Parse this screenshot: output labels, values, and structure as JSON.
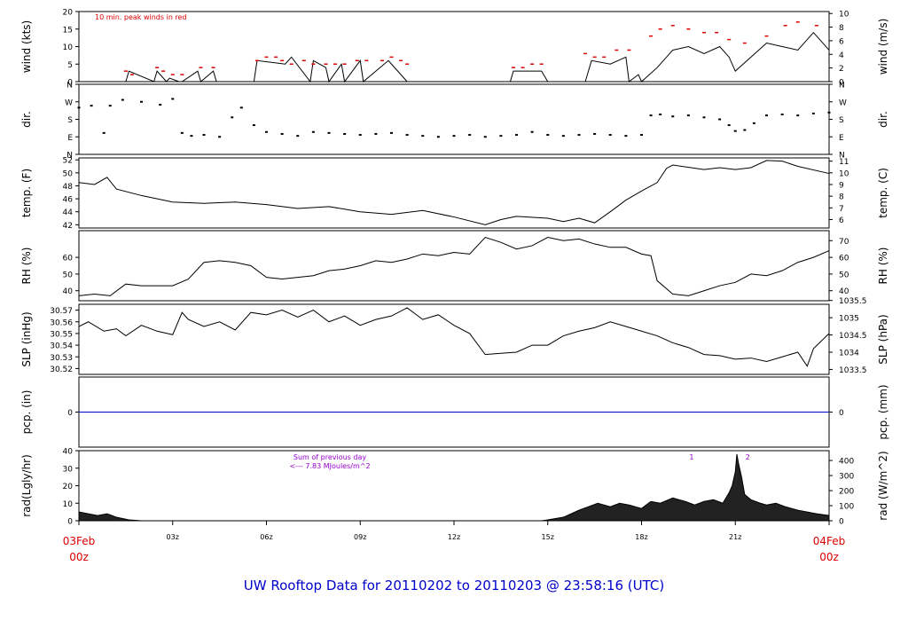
{
  "footer": {
    "title": "UW Rooftop Data for 20110202  to  20110203 @ 23:58:16  (UTC)"
  },
  "colors": {
    "axis": "#000000",
    "data": "#000000",
    "peak": "#dd0000",
    "precip_line": "#0000cc",
    "annotation": "#9900cc",
    "x_label": "#dd0000",
    "footer": "#0000cc"
  },
  "x_axis": {
    "start": "03Feb 00z",
    "end": "04Feb 00z",
    "ticks": [
      {
        "hour": 0,
        "label": ""
      },
      {
        "hour": 3,
        "label": "03z"
      },
      {
        "hour": 6,
        "label": "06z"
      },
      {
        "hour": 9,
        "label": "09z"
      },
      {
        "hour": 12,
        "label": "12z"
      },
      {
        "hour": 15,
        "label": "15z"
      },
      {
        "hour": 18,
        "label": "18z"
      },
      {
        "hour": 21,
        "label": "21z"
      },
      {
        "hour": 24,
        "label": ""
      }
    ],
    "start_label": [
      "03Feb",
      "00z"
    ],
    "end_label": [
      "04Feb",
      "00z"
    ]
  },
  "chart_data": [
    {
      "id": "wind",
      "type": "line",
      "ylabel_left": "wind (kts)",
      "ylabel_right": "wind (m/s)",
      "ylim": [
        0,
        20
      ],
      "left_ticks": [
        0,
        5,
        10,
        15,
        20
      ],
      "right_ticks": [
        0,
        2,
        4,
        6,
        8,
        10
      ],
      "right_factor": 0.5144,
      "annotation": "10 min. peak winds in red",
      "x": [
        0,
        1.5,
        1.6,
        2.4,
        2.5,
        2.8,
        2.9,
        3.2,
        3.3,
        3.8,
        3.9,
        4.3,
        4.4,
        5.6,
        5.7,
        6.6,
        6.8,
        7.4,
        7.5,
        7.9,
        8.0,
        8.4,
        8.5,
        9.0,
        9.1,
        9.9,
        10.0,
        10.5,
        10.6,
        13.8,
        13.9,
        14.8,
        15.0,
        16.2,
        16.4,
        17.0,
        17.5,
        17.6,
        17.9,
        18.0,
        18.5,
        19.0,
        19.5,
        20.0,
        20.5,
        20.8,
        21.0,
        21.5,
        22.0,
        22.5,
        23.0,
        23.5,
        24.0
      ],
      "y": [
        0,
        0,
        3,
        0,
        3,
        0,
        1,
        0,
        0,
        3,
        0,
        3,
        0,
        0,
        6,
        5,
        7,
        0,
        6,
        4,
        0,
        5,
        0,
        6,
        0,
        6,
        5,
        0,
        0,
        0,
        3,
        3,
        0,
        0,
        6,
        5,
        7,
        0,
        2,
        0,
        4,
        9,
        10,
        8,
        10,
        7,
        3,
        7,
        11,
        10,
        9,
        14,
        9
      ],
      "peaks": [
        {
          "x": 1.5,
          "y": 3
        },
        {
          "x": 1.7,
          "y": 2
        },
        {
          "x": 2.5,
          "y": 4
        },
        {
          "x": 2.7,
          "y": 3
        },
        {
          "x": 3.0,
          "y": 2
        },
        {
          "x": 3.3,
          "y": 2
        },
        {
          "x": 3.9,
          "y": 4
        },
        {
          "x": 4.3,
          "y": 4
        },
        {
          "x": 5.7,
          "y": 6
        },
        {
          "x": 6.0,
          "y": 7
        },
        {
          "x": 6.3,
          "y": 7
        },
        {
          "x": 6.5,
          "y": 6
        },
        {
          "x": 6.8,
          "y": 5
        },
        {
          "x": 7.2,
          "y": 6
        },
        {
          "x": 7.5,
          "y": 5
        },
        {
          "x": 7.9,
          "y": 5
        },
        {
          "x": 8.2,
          "y": 5
        },
        {
          "x": 8.5,
          "y": 5
        },
        {
          "x": 8.9,
          "y": 6
        },
        {
          "x": 9.2,
          "y": 6
        },
        {
          "x": 9.7,
          "y": 6
        },
        {
          "x": 10.0,
          "y": 7
        },
        {
          "x": 10.3,
          "y": 6
        },
        {
          "x": 10.5,
          "y": 5
        },
        {
          "x": 13.9,
          "y": 4
        },
        {
          "x": 14.2,
          "y": 4
        },
        {
          "x": 14.5,
          "y": 5
        },
        {
          "x": 14.8,
          "y": 5
        },
        {
          "x": 16.2,
          "y": 8
        },
        {
          "x": 16.5,
          "y": 7
        },
        {
          "x": 16.8,
          "y": 7
        },
        {
          "x": 17.2,
          "y": 9
        },
        {
          "x": 17.6,
          "y": 9
        },
        {
          "x": 18.3,
          "y": 13
        },
        {
          "x": 18.6,
          "y": 15
        },
        {
          "x": 19.0,
          "y": 16
        },
        {
          "x": 19.5,
          "y": 15
        },
        {
          "x": 20.0,
          "y": 14
        },
        {
          "x": 20.4,
          "y": 14
        },
        {
          "x": 20.8,
          "y": 12
        },
        {
          "x": 21.3,
          "y": 11
        },
        {
          "x": 22.0,
          "y": 13
        },
        {
          "x": 22.6,
          "y": 16
        },
        {
          "x": 23.0,
          "y": 17
        },
        {
          "x": 23.6,
          "y": 16
        }
      ]
    },
    {
      "id": "dir",
      "type": "scatter",
      "ylabel_left": "dir.",
      "ylabel_right": "dir.",
      "ylim": [
        0,
        360
      ],
      "left_ticks": [
        {
          "value": 0,
          "label": "N"
        },
        {
          "value": 90,
          "label": "E"
        },
        {
          "value": 180,
          "label": "S"
        },
        {
          "value": 270,
          "label": "W"
        },
        {
          "value": 360,
          "label": "N"
        }
      ],
      "right_ticks": [
        {
          "value": 0,
          "label": "N"
        },
        {
          "value": 90,
          "label": "E"
        },
        {
          "value": 180,
          "label": "S"
        },
        {
          "value": 270,
          "label": "W"
        },
        {
          "value": 360,
          "label": "N"
        }
      ],
      "x": [
        0,
        0.4,
        0.8,
        1.0,
        1.4,
        2.0,
        2.6,
        3.0,
        3.3,
        3.6,
        4.0,
        4.5,
        4.9,
        5.2,
        5.6,
        6.0,
        6.5,
        7.0,
        7.5,
        8.0,
        8.5,
        9.0,
        9.5,
        10.0,
        10.5,
        11.0,
        11.5,
        12.0,
        12.5,
        13.0,
        13.5,
        14.0,
        14.5,
        15.0,
        15.5,
        16.0,
        16.5,
        17.0,
        17.5,
        18.0,
        18.3,
        18.6,
        19.0,
        19.5,
        20.0,
        20.5,
        20.8,
        21.0,
        21.3,
        21.6,
        22.0,
        22.5,
        23.0,
        23.5,
        24.0
      ],
      "y": [
        240,
        250,
        110,
        250,
        280,
        270,
        255,
        285,
        110,
        95,
        100,
        90,
        190,
        240,
        150,
        115,
        105,
        95,
        115,
        110,
        105,
        100,
        105,
        110,
        100,
        95,
        90,
        95,
        100,
        90,
        95,
        100,
        115,
        100,
        95,
        100,
        105,
        100,
        95,
        100,
        200,
        205,
        195,
        200,
        190,
        180,
        150,
        120,
        125,
        160,
        200,
        205,
        200,
        210,
        215
      ]
    },
    {
      "id": "temp",
      "type": "line",
      "ylabel_left": "temp. (F)",
      "ylabel_right": "temp. (C)",
      "ylim": [
        41.5,
        52.3
      ],
      "left_ticks": [
        42,
        44,
        46,
        48,
        50,
        52
      ],
      "right_ticks": [
        6,
        7,
        8,
        9,
        10,
        11
      ],
      "x": [
        0,
        0.5,
        0.9,
        1.2,
        2,
        3,
        4,
        5,
        6,
        7,
        8,
        9,
        10,
        11,
        12,
        13,
        13.5,
        14,
        15,
        15.5,
        16,
        16.5,
        17,
        17.5,
        18,
        18.5,
        18.8,
        19,
        20,
        20.5,
        21,
        21.5,
        22,
        22.5,
        23,
        24
      ],
      "y": [
        48.5,
        48.2,
        49.3,
        47.5,
        46.5,
        45.5,
        45.3,
        45.5,
        45.1,
        44.5,
        44.8,
        44.0,
        43.6,
        44.2,
        43.2,
        42.0,
        42.8,
        43.3,
        43.0,
        42.5,
        43.0,
        42.3,
        44.0,
        45.8,
        47.2,
        48.5,
        50.7,
        51.2,
        50.5,
        50.8,
        50.5,
        50.8,
        51.9,
        51.8,
        51.0,
        49.9
      ]
    },
    {
      "id": "rh",
      "type": "line",
      "ylabel_left": "RH (%)",
      "ylabel_right": "RH (%)",
      "ylim": [
        34,
        76
      ],
      "left_ticks": [
        40,
        50,
        60
      ],
      "right_ticks": [
        40,
        50,
        60,
        70
      ],
      "x": [
        0,
        0.5,
        1,
        1.5,
        2,
        3,
        3.5,
        4,
        4.5,
        5,
        5.5,
        6,
        6.5,
        7,
        7.5,
        8,
        8.5,
        9,
        9.5,
        10,
        10.5,
        11,
        11.5,
        12,
        12.5,
        13,
        13.5,
        14,
        14.5,
        15,
        15.5,
        16,
        16.5,
        17,
        17.5,
        18,
        18.3,
        18.5,
        19,
        19.5,
        20,
        20.5,
        21,
        21.5,
        22,
        22.5,
        23,
        23.5,
        24
      ],
      "y": [
        37,
        38,
        37,
        44,
        43,
        43,
        47,
        57,
        58,
        57,
        55,
        48,
        47,
        48,
        49,
        52,
        53,
        55,
        58,
        57,
        59,
        62,
        61,
        63,
        62,
        72,
        69,
        65,
        67,
        72,
        70,
        71,
        68,
        66,
        66,
        62,
        61,
        46,
        38,
        37,
        40,
        43,
        45,
        50,
        49,
        52,
        57,
        60,
        64
      ]
    },
    {
      "id": "pressure",
      "type": "line",
      "ylabel_left": "SLP (inHg)",
      "ylabel_right": "SLP (hPa)",
      "ylim": [
        30.515,
        30.575
      ],
      "left_ticks": [
        30.52,
        30.53,
        30.54,
        30.55,
        30.56,
        30.57
      ],
      "right_ticks": [
        1033.5,
        1034,
        1034.5,
        1035,
        1035.5
      ],
      "x": [
        0,
        0.3,
        0.8,
        1.2,
        1.5,
        2,
        2.5,
        3,
        3.3,
        3.5,
        4,
        4.5,
        5,
        5.5,
        6,
        6.5,
        7,
        7.5,
        8,
        8.5,
        9,
        9.5,
        10,
        10.5,
        11,
        11.5,
        12,
        12.5,
        13,
        13.5,
        14,
        14.5,
        15,
        15.5,
        16,
        16.5,
        17,
        17.5,
        18,
        18.5,
        19,
        19.5,
        20,
        20.5,
        21,
        21.5,
        22,
        22.5,
        23,
        23.3,
        23.5,
        24
      ],
      "y": [
        30.556,
        30.56,
        30.552,
        30.554,
        30.548,
        30.557,
        30.552,
        30.549,
        30.568,
        30.562,
        30.556,
        30.56,
        30.553,
        30.568,
        30.566,
        30.57,
        30.564,
        30.57,
        30.56,
        30.565,
        30.557,
        30.562,
        30.565,
        30.572,
        30.562,
        30.566,
        30.557,
        30.55,
        30.532,
        30.533,
        30.534,
        30.54,
        30.54,
        30.548,
        30.552,
        30.555,
        30.56,
        30.556,
        30.552,
        30.548,
        30.542,
        30.538,
        30.532,
        30.531,
        30.528,
        30.529,
        30.526,
        30.53,
        30.534,
        30.522,
        30.537,
        30.55
      ]
    },
    {
      "id": "precip",
      "type": "line",
      "ylabel_left": "pcp. (in)",
      "ylabel_right": "pcp. (mm)",
      "ylim": [
        -1,
        1
      ],
      "left_ticks": [
        0
      ],
      "right_ticks": [
        0
      ],
      "x": [
        0,
        24
      ],
      "y": [
        0,
        0
      ]
    },
    {
      "id": "radiation",
      "type": "area",
      "ylabel_left": "rad(Lgly/hr)",
      "ylabel_right": "rad (W/m^2)",
      "ylim": [
        0,
        40
      ],
      "left_ticks": [
        0,
        10,
        20,
        30,
        40
      ],
      "right_ticks": [
        0,
        100,
        200,
        300,
        400
      ],
      "right_factor": 11.63,
      "annotation_lines": [
        "Sum of previous day",
        "<--- 7.83 MJoules/m^2"
      ],
      "markers": [
        {
          "x": 19.6,
          "label": "1"
        },
        {
          "x": 21.4,
          "label": "2"
        }
      ],
      "x": [
        0,
        0.3,
        0.6,
        0.9,
        1.2,
        1.6,
        2,
        14.8,
        15,
        15.5,
        16,
        16.3,
        16.6,
        17,
        17.3,
        17.6,
        18,
        18.3,
        18.6,
        19,
        19.4,
        19.7,
        20,
        20.3,
        20.6,
        20.8,
        20.9,
        21,
        21.05,
        21.1,
        21.2,
        21.3,
        21.5,
        21.8,
        22,
        22.3,
        22.6,
        23,
        23.3,
        23.6,
        24
      ],
      "y": [
        5,
        4,
        3,
        4,
        2,
        0.5,
        0,
        0,
        0.5,
        2,
        6,
        8,
        10,
        8,
        10,
        9,
        7,
        11,
        10,
        13,
        11,
        9,
        11,
        12,
        10,
        16,
        20,
        28,
        38,
        33,
        25,
        15,
        12,
        10,
        9,
        10,
        8,
        6,
        5,
        4,
        3
      ]
    }
  ]
}
